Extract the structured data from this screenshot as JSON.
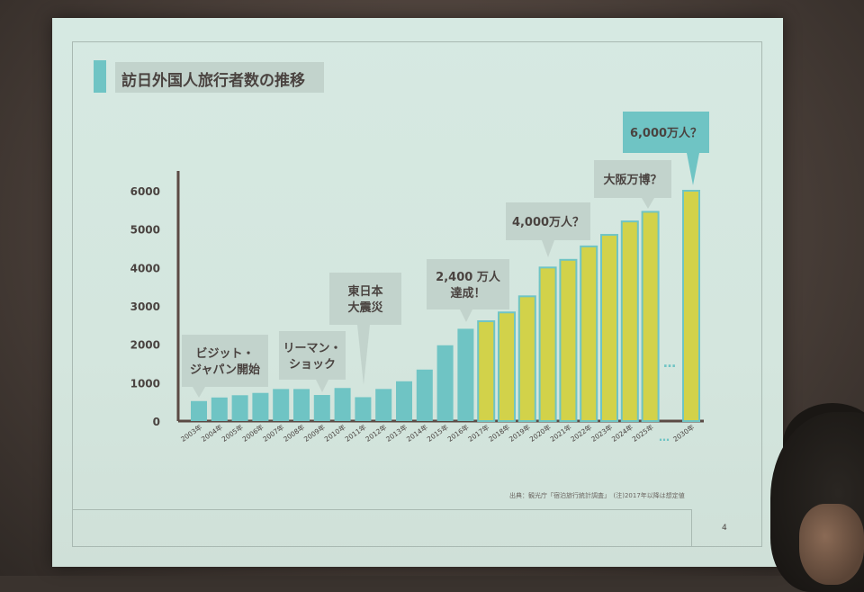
{
  "slide": {
    "title": "訪日外国人旅行者数の推移",
    "source_note": "出典：観光庁「宿泊旅行統計調査」　(注)2017年以降は想定値",
    "page_number": "4"
  },
  "colors": {
    "actual_bar": "#6fc4c4",
    "projected_bar": "#d2d24a",
    "projected_bar_border": "#6fc4c4",
    "axis": "#5b4a44",
    "callout_bg": "#c2d3cc",
    "label_text": "#4a4340"
  },
  "chart_data": {
    "type": "bar",
    "title": "訪日外国人旅行者数の推移",
    "xlabel": "",
    "ylabel": "",
    "ylim": [
      0,
      6500
    ],
    "yticks": [
      0,
      1000,
      2000,
      3000,
      4000,
      5000,
      6000
    ],
    "ytick_labels": [
      "0",
      "1000",
      "2000",
      "3000",
      "4000",
      "5000",
      "6000"
    ],
    "grid": false,
    "legend": "none",
    "categories": [
      "2003年",
      "2004年",
      "2005年",
      "2006年",
      "2007年",
      "2008年",
      "2009年",
      "2010年",
      "2011年",
      "2012年",
      "2013年",
      "2014年",
      "2015年",
      "2016年",
      "2017年",
      "2018年",
      "2019年",
      "2020年",
      "2021年",
      "2022年",
      "2023年",
      "2024年",
      "2025年",
      "2030年"
    ],
    "values": [
      521,
      614,
      673,
      733,
      835,
      835,
      679,
      861,
      622,
      836,
      1036,
      1341,
      1974,
      2404,
      2600,
      2830,
      3250,
      4000,
      4200,
      4550,
      4850,
      5200,
      5450,
      6000
    ],
    "projected_from_index": 14,
    "ellipsis_text": "…",
    "annotations": [
      {
        "text": [
          "ビジット・",
          "ジャパン開始"
        ],
        "category": "2003年"
      },
      {
        "text": [
          "リーマン・",
          "ショック"
        ],
        "category": "2009年"
      },
      {
        "text": [
          "東日本",
          "大震災"
        ],
        "category": "2011年"
      },
      {
        "text": [
          "2,400 万人",
          "達成！"
        ],
        "category": "2016年"
      },
      {
        "text": [
          "4,000万人？"
        ],
        "category": "2020年"
      },
      {
        "text": [
          "大阪万博？"
        ],
        "category": "2025年"
      },
      {
        "text": [
          "6,000万人？"
        ],
        "category": "2030年"
      }
    ]
  }
}
